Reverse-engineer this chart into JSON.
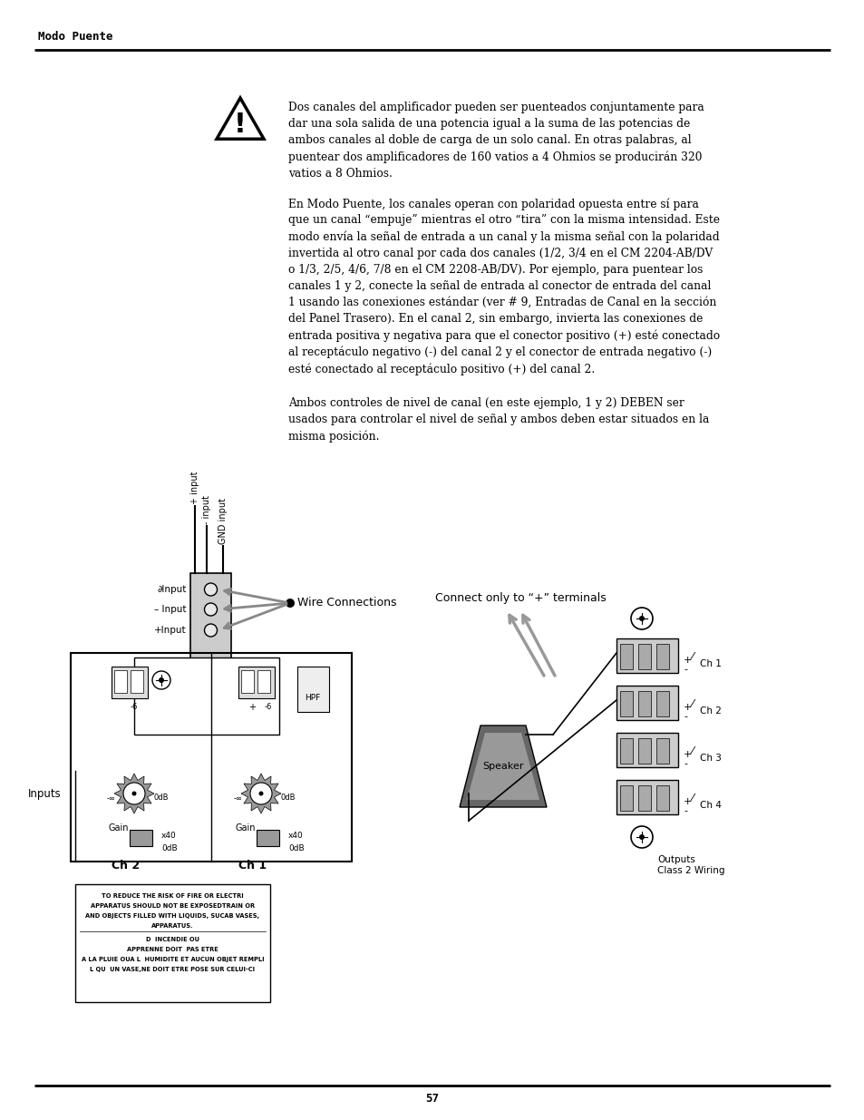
{
  "page_title": "Modo Puente",
  "page_number": "57",
  "bg": "#ffffff",
  "para1_lines": [
    "Dos canales del amplificador pueden ser puenteados conjuntamente para",
    "dar una sola salida de una potencia igual a la suma de las potencias de",
    "ambos canales al doble de carga de un solo canal. En otras palabras, al",
    "puentear dos amplificadores de 160 vatios a 4 Ohmios se producirán 320",
    "vatios a 8 Ohmios."
  ],
  "para2_lines": [
    "En Modo Puente, los canales operan con polaridad opuesta entre sí para",
    "que un canal “empuje” mientras el otro “tira” con la misma intensidad. Este",
    "modo envía la señal de entrada a un canal y la misma señal con la polaridad",
    "invertida al otro canal por cada dos canales (1/2, 3/4 en el CM 2204-AB/DV",
    "o 1/3, 2/5, 4/6, 7/8 en el CM 2208-AB/DV). Por ejemplo, para puentear los",
    "canales 1 y 2, conecte la señal de entrada al conector de entrada del canal",
    "1 usando las conexiones estándar (ver # 9, Entradas de Canal en la sección",
    "del Panel Trasero). En el canal 2, sin embargo, invierta las conexiones de",
    "entrada positiva y negativa para que el conector positivo (+) esté conectado",
    "al receptáculo negativo (-) del canal 2 y el conector de entrada negativo (-)",
    "esté conectado al receptáculo positivo (+) del canal 2."
  ],
  "para3_lines": [
    "Ambos controles de nivel de canal (en este ejemplo, 1 y 2) DEBEN ser",
    "usados para controlar el nivel de señal y ambos deben estar situados en la",
    "misma posición."
  ],
  "warn_small_lines1": [
    "TO REDUCE THE RISK OF FIRE OR ELECTRI",
    "APPARATUS SHOULD NOT BE EXPOSEDTRAIN OR",
    "AND OBJECTS FILLED WITH LIQUIDS, SUCAB VASES,",
    "APPARATUS."
  ],
  "warn_small_lines2": [
    "D  INCENDIE OU",
    "APPRENNE DOIT  PAS ETRE",
    "A LA PLUIE OUA L  HUMIDITE ET AUCUN OBJET REMPLI",
    "L QU  UN VASE,NE DOIT ETRE POSE SUR CELUI-CI"
  ]
}
